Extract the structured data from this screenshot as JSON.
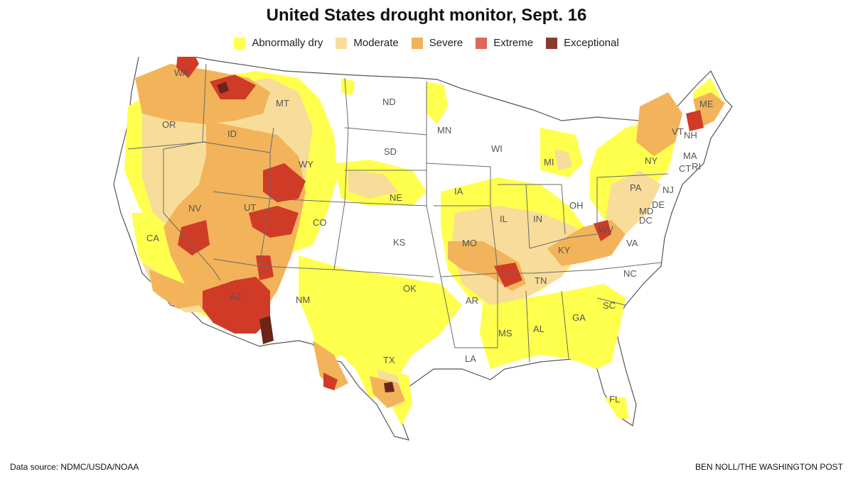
{
  "title": "United States drought monitor, Sept. 16",
  "legend": [
    {
      "label": "Abnormally dry",
      "color": "#ffff4d"
    },
    {
      "label": "Moderate",
      "color": "#f8dc9a"
    },
    {
      "label": "Severe",
      "color": "#f2b35a"
    },
    {
      "label": "Extreme",
      "color": "#e0655a"
    },
    {
      "label": "Exceptional",
      "color": "#8a3a2c"
    }
  ],
  "states": [
    "WA",
    "OR",
    "CA",
    "NV",
    "ID",
    "MT",
    "WY",
    "UT",
    "AZ",
    "CO",
    "NM",
    "ND",
    "SD",
    "NE",
    "KS",
    "OK",
    "TX",
    "MN",
    "IA",
    "MO",
    "AR",
    "LA",
    "WI",
    "IL",
    "MI",
    "IN",
    "OH",
    "KY",
    "TN",
    "MS",
    "AL",
    "GA",
    "FL",
    "SC",
    "NC",
    "VA",
    "WV",
    "PA",
    "NY",
    "VT",
    "NH",
    "ME",
    "MA",
    "CT",
    "RI",
    "NJ",
    "DE",
    "MD",
    "DC"
  ],
  "source": "Data source: NDMC/USDA/NOAA",
  "credit": "BEN NOLL/THE WASHINGTON POST"
}
